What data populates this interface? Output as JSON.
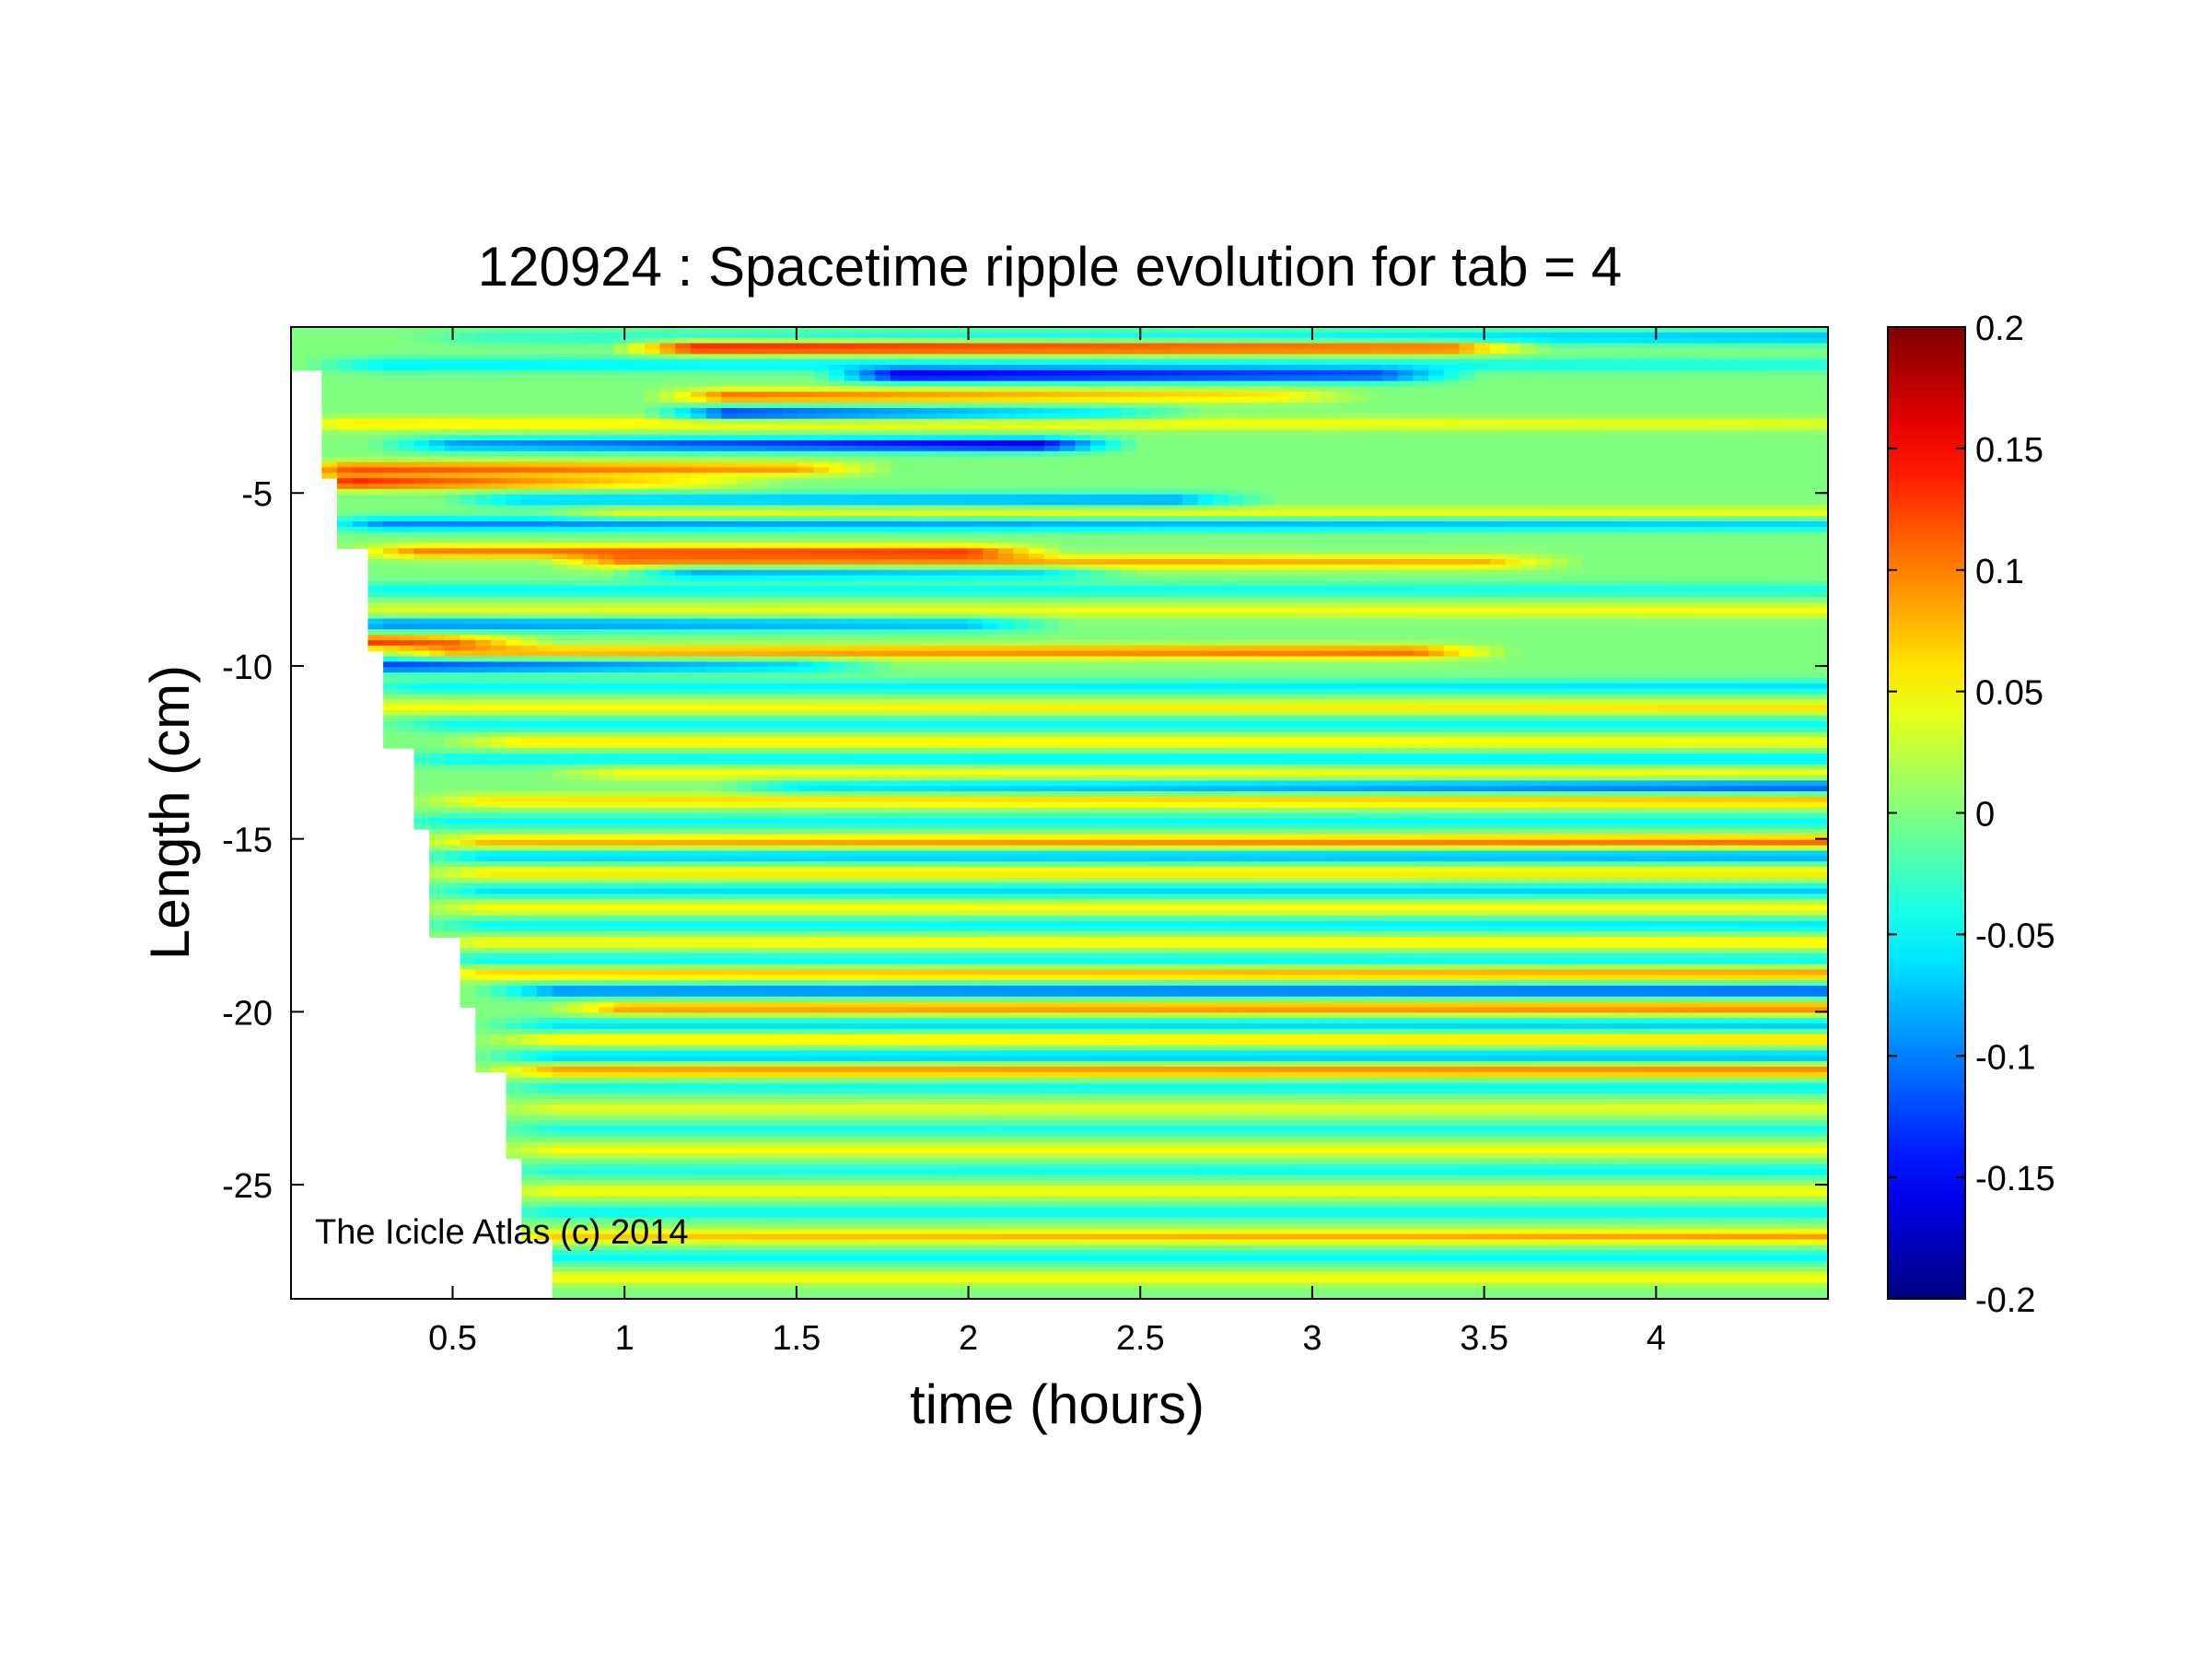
{
  "chart_data": {
    "type": "heatmap",
    "title": "120924 : Spacetime ripple evolution for tab = 4",
    "xlabel": "time (hours)",
    "ylabel": "Length (cm)",
    "xlim": [
      0.03,
      4.5
    ],
    "ylim": [
      -28.3,
      -0.2
    ],
    "xticks": [
      0.5,
      1,
      1.5,
      2,
      2.5,
      3,
      3.5,
      4
    ],
    "xtick_labels": [
      "0.5",
      "1",
      "1.5",
      "2",
      "2.5",
      "3",
      "3.5",
      "4"
    ],
    "yticks": [
      -5,
      -10,
      -15,
      -20,
      -25
    ],
    "ytick_labels": [
      "-5",
      "-10",
      "-15",
      "-20",
      "-25"
    ],
    "grid": false,
    "colorbar": {
      "colormap": "jet",
      "range": [
        -0.2,
        0.2
      ],
      "ticks": [
        0.2,
        0.15,
        0.1,
        0.05,
        0,
        -0.05,
        -0.1,
        -0.15,
        -0.2
      ],
      "tick_labels": [
        "0.2",
        "0.15",
        "0.1",
        "0.05",
        "0",
        "-0.05",
        "-0.1",
        "-0.15",
        "-0.2"
      ],
      "placement": "right"
    },
    "data_start_boundary": [
      {
        "t": 0.03,
        "L_from": -0.2,
        "L_to": -1.5
      },
      {
        "t": 0.1,
        "L_from": -1.5,
        "L_to": -4.5
      },
      {
        "t": 0.17,
        "L_from": -4.5,
        "L_to": -6.6
      },
      {
        "t": 0.24,
        "L_from": -6.6,
        "L_to": -9.5
      },
      {
        "t": 0.3,
        "L_from": -9.5,
        "L_to": -12.3
      },
      {
        "t": 0.37,
        "L_from": -12.3,
        "L_to": -14.7
      },
      {
        "t": 0.44,
        "L_from": -14.7,
        "L_to": -17.9
      },
      {
        "t": 0.51,
        "L_from": -17.9,
        "L_to": -19.9
      },
      {
        "t": 0.58,
        "L_from": -19.9,
        "L_to": -21.7
      },
      {
        "t": 0.65,
        "L_from": -21.7,
        "L_to": -24.2
      },
      {
        "t": 0.72,
        "L_from": -24.2,
        "L_to": -26.6
      },
      {
        "t": 0.79,
        "L_from": -26.6,
        "L_to": -28.3
      }
    ],
    "ripple_bands": [
      {
        "L": -0.5,
        "t_start": 0.6,
        "t_end": 4.5,
        "amp_start": -0.03,
        "amp_end": -0.08
      },
      {
        "L": -0.8,
        "t_start": 1.2,
        "t_end": 3.4,
        "amp_start": 0.15,
        "amp_end": 0.12
      },
      {
        "L": -1.3,
        "t_start": 0.3,
        "t_end": 4.5,
        "amp_start": -0.06,
        "amp_end": -0.04
      },
      {
        "L": -1.6,
        "t_start": 1.8,
        "t_end": 3.2,
        "amp_start": -0.16,
        "amp_end": -0.12
      },
      {
        "L": -2.2,
        "t_start": 1.3,
        "t_end": 2.9,
        "amp_start": 0.11,
        "amp_end": 0.06
      },
      {
        "L": -2.7,
        "t_start": 1.3,
        "t_end": 2.4,
        "amp_start": -0.14,
        "amp_end": -0.06
      },
      {
        "L": -3.0,
        "t_start": 0.2,
        "t_end": 4.5,
        "amp_start": 0.06,
        "amp_end": 0.04
      },
      {
        "L": -3.6,
        "t_start": 0.5,
        "t_end": 2.2,
        "amp_start": -0.09,
        "amp_end": -0.17
      },
      {
        "L": -4.3,
        "t_start": 0.2,
        "t_end": 1.5,
        "amp_start": 0.12,
        "amp_end": 0.09
      },
      {
        "L": -4.7,
        "t_start": 0.2,
        "t_end": 1.2,
        "amp_start": 0.14,
        "amp_end": 0.05
      },
      {
        "L": -5.2,
        "t_start": 0.7,
        "t_end": 2.6,
        "amp_start": -0.07,
        "amp_end": -0.09
      },
      {
        "L": -5.6,
        "t_start": 1.0,
        "t_end": 4.5,
        "amp_start": 0.05,
        "amp_end": 0.05
      },
      {
        "L": -5.9,
        "t_start": 0.3,
        "t_end": 4.5,
        "amp_start": -0.1,
        "amp_end": -0.07
      },
      {
        "L": -6.7,
        "t_start": 0.4,
        "t_end": 2.0,
        "amp_start": 0.1,
        "amp_end": 0.12
      },
      {
        "L": -7.0,
        "t_start": 1.0,
        "t_end": 3.5,
        "amp_start": 0.09,
        "amp_end": 0.08
      },
      {
        "L": -7.3,
        "t_start": 1.2,
        "t_end": 2.2,
        "amp_start": -0.09,
        "amp_end": -0.07
      },
      {
        "L": -7.8,
        "t_start": 0.3,
        "t_end": 4.5,
        "amp_start": -0.05,
        "amp_end": -0.04
      },
      {
        "L": -8.4,
        "t_start": 0.3,
        "t_end": 4.5,
        "amp_start": 0.04,
        "amp_end": 0.05
      },
      {
        "L": -8.8,
        "t_start": 0.3,
        "t_end": 2.0,
        "amp_start": -0.1,
        "amp_end": -0.08
      },
      {
        "L": -9.3,
        "t_start": 0.2,
        "t_end": 0.5,
        "amp_start": 0.14,
        "amp_end": 0.1
      },
      {
        "L": -9.6,
        "t_start": 0.5,
        "t_end": 3.3,
        "amp_start": 0.08,
        "amp_end": 0.11
      },
      {
        "L": -10.0,
        "t_start": 0.3,
        "t_end": 1.5,
        "amp_start": -0.13,
        "amp_end": -0.07
      },
      {
        "L": -10.6,
        "t_start": 0.4,
        "t_end": 4.5,
        "amp_start": -0.05,
        "amp_end": -0.06
      },
      {
        "L": -11.2,
        "t_start": 0.3,
        "t_end": 4.5,
        "amp_start": 0.05,
        "amp_end": 0.06
      },
      {
        "L": -11.7,
        "t_start": 0.5,
        "t_end": 4.5,
        "amp_start": -0.05,
        "amp_end": -0.05
      },
      {
        "L": -12.2,
        "t_start": 0.7,
        "t_end": 4.5,
        "amp_start": 0.06,
        "amp_end": 0.05
      },
      {
        "L": -12.7,
        "t_start": 0.5,
        "t_end": 4.5,
        "amp_start": -0.05,
        "amp_end": -0.06
      },
      {
        "L": -13.1,
        "t_start": 1.0,
        "t_end": 4.5,
        "amp_start": 0.05,
        "amp_end": 0.05
      },
      {
        "L": -13.5,
        "t_start": 1.5,
        "t_end": 4.5,
        "amp_start": -0.06,
        "amp_end": -0.12
      },
      {
        "L": -13.9,
        "t_start": 0.6,
        "t_end": 4.5,
        "amp_start": 0.06,
        "amp_end": 0.08
      },
      {
        "L": -14.5,
        "t_start": 0.5,
        "t_end": 4.5,
        "amp_start": -0.05,
        "amp_end": -0.05
      },
      {
        "L": -15.1,
        "t_start": 0.6,
        "t_end": 4.5,
        "amp_start": 0.08,
        "amp_end": 0.11
      },
      {
        "L": -15.5,
        "t_start": 0.6,
        "t_end": 4.5,
        "amp_start": -0.07,
        "amp_end": -0.09
      },
      {
        "L": -16.0,
        "t_start": 0.6,
        "t_end": 4.5,
        "amp_start": 0.06,
        "amp_end": 0.06
      },
      {
        "L": -16.5,
        "t_start": 0.6,
        "t_end": 4.5,
        "amp_start": -0.06,
        "amp_end": -0.07
      },
      {
        "L": -17.0,
        "t_start": 0.6,
        "t_end": 4.5,
        "amp_start": 0.05,
        "amp_end": 0.05
      },
      {
        "L": -17.5,
        "t_start": 0.6,
        "t_end": 4.5,
        "amp_start": -0.05,
        "amp_end": -0.06
      },
      {
        "L": -18.0,
        "t_start": 0.6,
        "t_end": 4.5,
        "amp_start": 0.05,
        "amp_end": 0.06
      },
      {
        "L": -18.5,
        "t_start": 0.6,
        "t_end": 4.5,
        "amp_start": -0.05,
        "amp_end": -0.05
      },
      {
        "L": -18.9,
        "t_start": 0.6,
        "t_end": 4.5,
        "amp_start": 0.07,
        "amp_end": 0.09
      },
      {
        "L": -19.4,
        "t_start": 0.8,
        "t_end": 4.5,
        "amp_start": -0.1,
        "amp_end": -0.12
      },
      {
        "L": -19.9,
        "t_start": 1.0,
        "t_end": 4.5,
        "amp_start": 0.09,
        "amp_end": 0.1
      },
      {
        "L": -20.4,
        "t_start": 0.8,
        "t_end": 4.5,
        "amp_start": -0.06,
        "amp_end": -0.07
      },
      {
        "L": -20.8,
        "t_start": 0.8,
        "t_end": 4.5,
        "amp_start": 0.06,
        "amp_end": 0.07
      },
      {
        "L": -21.3,
        "t_start": 0.8,
        "t_end": 4.5,
        "amp_start": -0.07,
        "amp_end": -0.08
      },
      {
        "L": -21.7,
        "t_start": 0.8,
        "t_end": 4.5,
        "amp_start": 0.09,
        "amp_end": 0.1
      },
      {
        "L": -22.2,
        "t_start": 0.8,
        "t_end": 4.5,
        "amp_start": -0.04,
        "amp_end": -0.05
      },
      {
        "L": -22.8,
        "t_start": 0.8,
        "t_end": 4.5,
        "amp_start": 0.04,
        "amp_end": 0.04
      },
      {
        "L": -23.4,
        "t_start": 0.8,
        "t_end": 4.5,
        "amp_start": -0.04,
        "amp_end": -0.04
      },
      {
        "L": -24.0,
        "t_start": 0.8,
        "t_end": 4.5,
        "amp_start": 0.05,
        "amp_end": 0.05
      },
      {
        "L": -24.6,
        "t_start": 0.8,
        "t_end": 4.5,
        "amp_start": -0.04,
        "amp_end": -0.05
      },
      {
        "L": -25.2,
        "t_start": 0.8,
        "t_end": 4.5,
        "amp_start": 0.05,
        "amp_end": 0.05
      },
      {
        "L": -25.8,
        "t_start": 0.8,
        "t_end": 4.5,
        "amp_start": -0.05,
        "amp_end": -0.05
      },
      {
        "L": -26.5,
        "t_start": 0.8,
        "t_end": 4.5,
        "amp_start": 0.07,
        "amp_end": 0.09
      },
      {
        "L": -27.1,
        "t_start": 0.8,
        "t_end": 4.5,
        "amp_start": -0.05,
        "amp_end": -0.05
      },
      {
        "L": -27.7,
        "t_start": 0.8,
        "t_end": 4.5,
        "amp_start": 0.05,
        "amp_end": 0.05
      }
    ],
    "annotation": "The Icicle Atlas (c) 2014"
  }
}
